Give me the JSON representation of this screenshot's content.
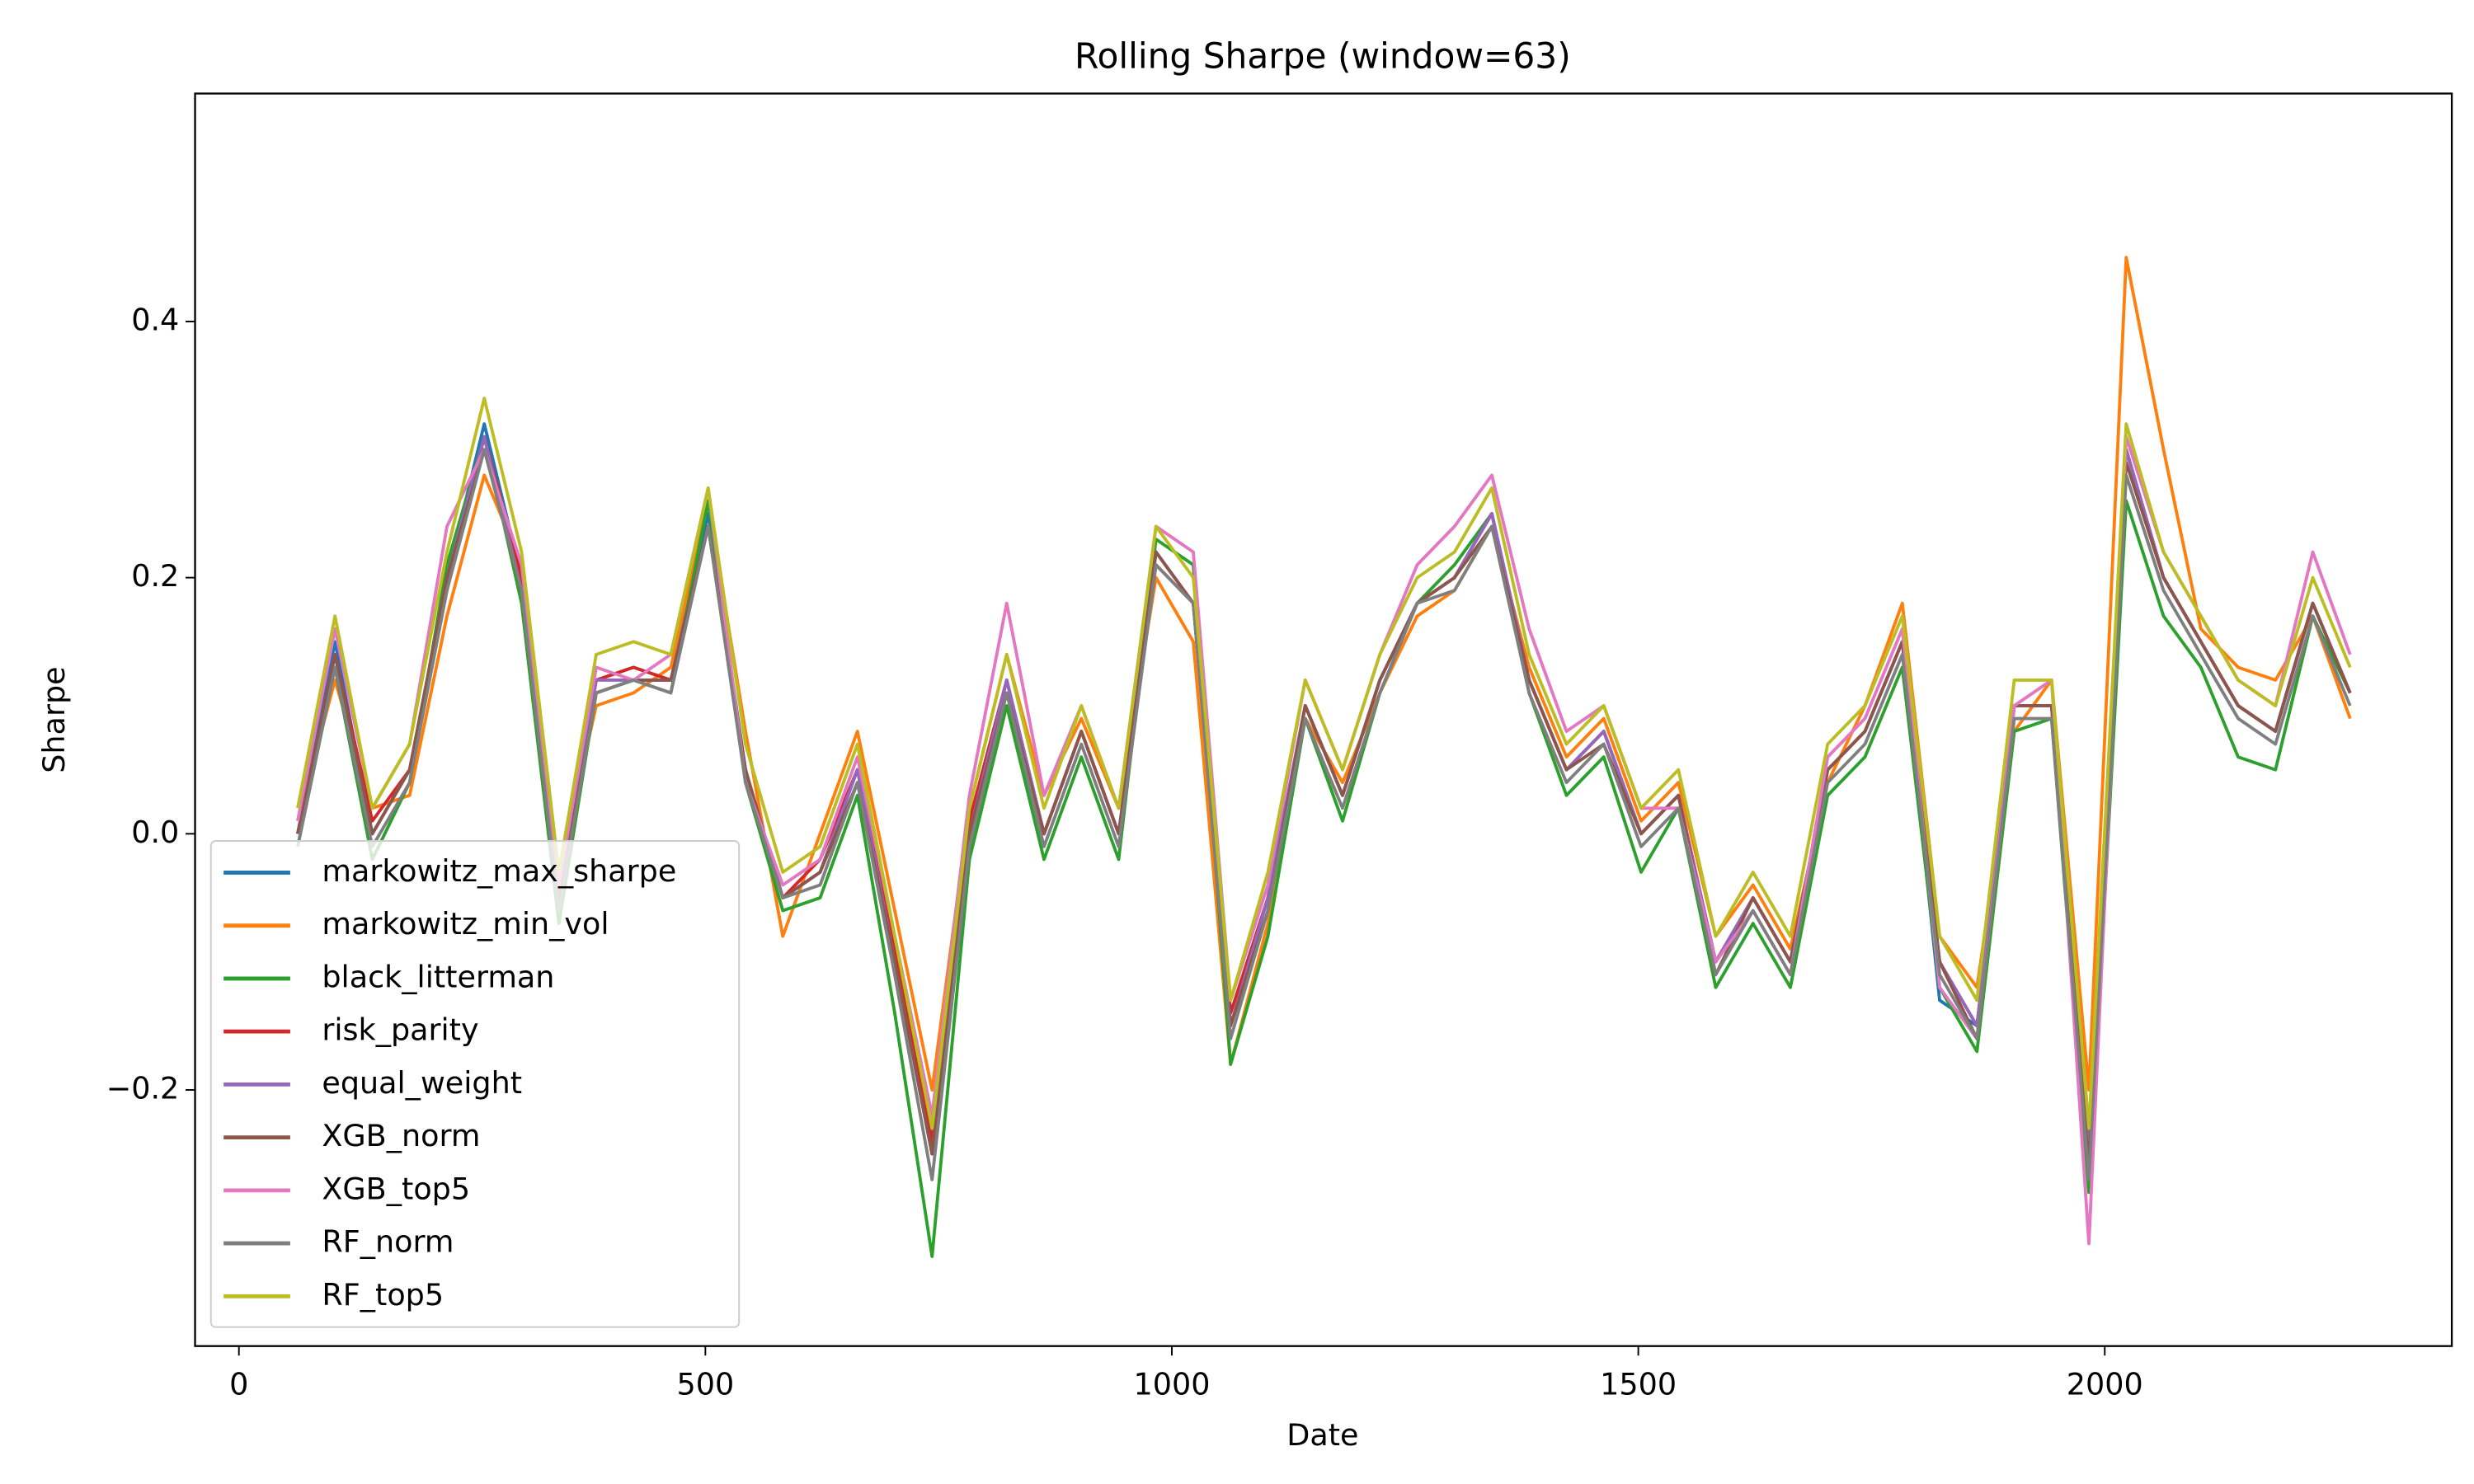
{
  "chart_data": {
    "type": "line",
    "title": "Rolling Sharpe (window=63)",
    "x_label": "Date",
    "y_label": "Sharpe",
    "x": [
      63,
      103,
      143,
      183,
      223,
      263,
      303,
      343,
      383,
      423,
      463,
      503,
      543,
      583,
      623,
      663,
      703,
      743,
      783,
      823,
      863,
      903,
      943,
      983,
      1023,
      1063,
      1103,
      1143,
      1183,
      1223,
      1263,
      1303,
      1343,
      1383,
      1423,
      1463,
      1503,
      1543,
      1583,
      1623,
      1663,
      1703,
      1743,
      1783,
      1823,
      1863,
      1903,
      1943,
      1983,
      2023,
      2063,
      2103,
      2143,
      2183,
      2223,
      2263
    ],
    "xlim": [
      -47,
      2372
    ],
    "xticks": [
      0,
      500,
      1000,
      1500,
      2000
    ],
    "ylim": [
      -0.4,
      0.578
    ],
    "yticks": [
      {
        "value": -0.2,
        "label": "−0.2"
      },
      {
        "value": 0,
        "label": "0.0"
      },
      0.2,
      0.4
    ],
    "legend": "lower left",
    "series": [
      {
        "name": "markowitz_max_sharpe",
        "color": "#1f77b4",
        "values": [
          0.0,
          0.15,
          0.0,
          0.05,
          0.2,
          0.32,
          0.2,
          -0.05,
          0.12,
          0.13,
          0.12,
          0.25,
          0.05,
          -0.05,
          -0.03,
          0.05,
          -0.1,
          -0.25,
          0.0,
          0.12,
          0.0,
          0.08,
          0.0,
          0.22,
          0.18,
          -0.15,
          -0.05,
          0.1,
          0.03,
          0.12,
          0.18,
          0.2,
          0.25,
          0.12,
          0.05,
          0.08,
          0.0,
          0.03,
          -0.1,
          -0.05,
          -0.1,
          0.05,
          0.08,
          0.15,
          -0.13,
          -0.15,
          0.1,
          0.1,
          -0.25,
          0.3,
          0.2,
          0.15,
          0.1,
          0.08,
          0.18,
          0.11
        ]
      },
      {
        "name": "markowitz_min_vol",
        "color": "#ff7f0e",
        "values": [
          0.01,
          0.12,
          0.02,
          0.03,
          0.17,
          0.28,
          0.21,
          -0.03,
          0.1,
          0.11,
          0.13,
          0.26,
          0.08,
          -0.08,
          0.0,
          0.08,
          -0.06,
          -0.2,
          0.02,
          0.14,
          0.03,
          0.09,
          0.02,
          0.2,
          0.15,
          -0.18,
          -0.07,
          0.09,
          0.04,
          0.11,
          0.17,
          0.19,
          0.24,
          0.13,
          0.06,
          0.09,
          0.01,
          0.04,
          -0.08,
          -0.04,
          -0.09,
          0.04,
          0.1,
          0.18,
          -0.08,
          -0.12,
          0.08,
          0.12,
          -0.2,
          0.45,
          0.3,
          0.16,
          0.13,
          0.12,
          0.17,
          0.09
        ]
      },
      {
        "name": "black_litterman",
        "color": "#2ca02c",
        "values": [
          -0.01,
          0.13,
          -0.02,
          0.04,
          0.21,
          0.31,
          0.18,
          -0.07,
          0.11,
          0.12,
          0.11,
          0.26,
          0.04,
          -0.06,
          -0.05,
          0.03,
          -0.14,
          -0.33,
          -0.02,
          0.1,
          -0.02,
          0.06,
          -0.02,
          0.23,
          0.21,
          -0.18,
          -0.08,
          0.09,
          0.01,
          0.11,
          0.18,
          0.21,
          0.25,
          0.11,
          0.03,
          0.06,
          -0.03,
          0.02,
          -0.12,
          -0.07,
          -0.12,
          0.03,
          0.06,
          0.13,
          -0.12,
          -0.17,
          0.08,
          0.09,
          -0.28,
          0.26,
          0.17,
          0.13,
          0.06,
          0.05,
          0.17,
          0.11
        ]
      },
      {
        "name": "risk_parity",
        "color": "#d62728",
        "values": [
          0.0,
          0.14,
          0.01,
          0.05,
          0.19,
          0.31,
          0.2,
          -0.04,
          0.12,
          0.13,
          0.12,
          0.24,
          0.05,
          -0.05,
          -0.02,
          0.05,
          -0.09,
          -0.24,
          0.01,
          0.12,
          0.0,
          0.08,
          0.0,
          0.21,
          0.18,
          -0.14,
          -0.05,
          0.1,
          0.03,
          0.12,
          0.18,
          0.2,
          0.25,
          0.12,
          0.05,
          0.08,
          0.0,
          0.03,
          -0.1,
          -0.05,
          -0.1,
          0.05,
          0.08,
          0.15,
          -0.1,
          -0.15,
          0.1,
          0.1,
          -0.24,
          0.3,
          0.2,
          0.15,
          0.1,
          0.08,
          0.18,
          0.11
        ]
      },
      {
        "name": "equal_weight",
        "color": "#9467bd",
        "values": [
          0.0,
          0.14,
          0.0,
          0.05,
          0.2,
          0.31,
          0.19,
          -0.05,
          0.12,
          0.12,
          0.12,
          0.24,
          0.05,
          -0.05,
          -0.03,
          0.05,
          -0.1,
          -0.25,
          0.0,
          0.12,
          0.0,
          0.08,
          0.0,
          0.22,
          0.18,
          -0.15,
          -0.05,
          0.1,
          0.03,
          0.12,
          0.18,
          0.2,
          0.25,
          0.12,
          0.05,
          0.08,
          0.0,
          0.03,
          -0.1,
          -0.05,
          -0.1,
          0.05,
          0.08,
          0.15,
          -0.1,
          -0.15,
          0.1,
          0.1,
          -0.25,
          0.3,
          0.2,
          0.15,
          0.1,
          0.08,
          0.18,
          0.11
        ]
      },
      {
        "name": "XGB_norm",
        "color": "#8c564b",
        "values": [
          0.0,
          0.14,
          0.0,
          0.05,
          0.2,
          0.3,
          0.19,
          -0.05,
          0.11,
          0.12,
          0.12,
          0.24,
          0.05,
          -0.05,
          -0.03,
          0.04,
          -0.1,
          -0.25,
          0.0,
          0.11,
          0.0,
          0.08,
          0.0,
          0.22,
          0.18,
          -0.15,
          -0.06,
          0.1,
          0.03,
          0.12,
          0.18,
          0.2,
          0.24,
          0.12,
          0.05,
          0.07,
          0.0,
          0.03,
          -0.11,
          -0.05,
          -0.1,
          0.05,
          0.08,
          0.15,
          -0.1,
          -0.16,
          0.1,
          0.1,
          -0.26,
          0.29,
          0.2,
          0.15,
          0.1,
          0.08,
          0.18,
          0.11
        ]
      },
      {
        "name": "XGB_top5",
        "color": "#e377c2",
        "values": [
          0.01,
          0.16,
          0.02,
          0.07,
          0.24,
          0.3,
          0.21,
          -0.04,
          0.13,
          0.12,
          0.14,
          0.27,
          0.04,
          -0.04,
          -0.02,
          0.06,
          -0.08,
          -0.22,
          0.03,
          0.18,
          0.03,
          0.1,
          0.02,
          0.24,
          0.22,
          -0.13,
          -0.04,
          0.12,
          0.05,
          0.14,
          0.21,
          0.24,
          0.28,
          0.16,
          0.08,
          0.1,
          0.02,
          0.02,
          -0.1,
          -0.06,
          -0.11,
          0.06,
          0.09,
          0.16,
          -0.12,
          -0.16,
          0.1,
          0.12,
          -0.32,
          0.31,
          0.22,
          0.17,
          0.12,
          0.1,
          0.22,
          0.14
        ]
      },
      {
        "name": "RF_norm",
        "color": "#7f7f7f",
        "values": [
          -0.01,
          0.13,
          -0.01,
          0.04,
          0.19,
          0.3,
          0.19,
          -0.06,
          0.11,
          0.12,
          0.11,
          0.24,
          0.04,
          -0.05,
          -0.04,
          0.04,
          -0.11,
          -0.27,
          -0.01,
          0.11,
          -0.01,
          0.07,
          -0.01,
          0.21,
          0.18,
          -0.16,
          -0.06,
          0.09,
          0.02,
          0.11,
          0.18,
          0.19,
          0.24,
          0.11,
          0.04,
          0.07,
          -0.01,
          0.02,
          -0.11,
          -0.06,
          -0.11,
          0.04,
          0.07,
          0.14,
          -0.11,
          -0.16,
          0.09,
          0.09,
          -0.27,
          0.28,
          0.19,
          0.14,
          0.09,
          0.07,
          0.17,
          0.1
        ]
      },
      {
        "name": "RF_top5",
        "color": "#bcbd22",
        "values": [
          0.02,
          0.17,
          0.02,
          0.07,
          0.22,
          0.34,
          0.22,
          -0.03,
          0.14,
          0.15,
          0.14,
          0.27,
          0.07,
          -0.03,
          -0.01,
          0.07,
          -0.08,
          -0.23,
          0.02,
          0.14,
          0.02,
          0.1,
          0.02,
          0.24,
          0.2,
          -0.13,
          -0.03,
          0.12,
          0.05,
          0.14,
          0.2,
          0.22,
          0.27,
          0.14,
          0.07,
          0.1,
          0.02,
          0.05,
          -0.08,
          -0.03,
          -0.08,
          0.07,
          0.1,
          0.17,
          -0.08,
          -0.13,
          0.12,
          0.12,
          -0.23,
          0.32,
          0.22,
          0.17,
          0.12,
          0.1,
          0.2,
          0.13
        ]
      }
    ]
  }
}
